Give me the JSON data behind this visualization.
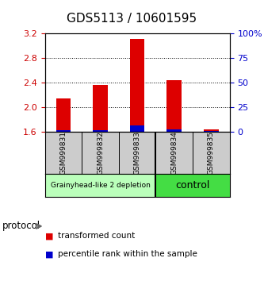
{
  "title": "GDS5113 / 10601595",
  "samples": [
    "GSM999831",
    "GSM999832",
    "GSM999833",
    "GSM999834",
    "GSM999835"
  ],
  "transformed_counts": [
    2.15,
    2.37,
    3.12,
    2.45,
    1.65
  ],
  "percentile_ranks_pct": [
    2.0,
    2.0,
    7.0,
    3.0,
    1.0
  ],
  "ymin": 1.6,
  "ymax": 3.2,
  "yticks_left": [
    1.6,
    2.0,
    2.4,
    2.8,
    3.2
  ],
  "yticks_right": [
    0,
    25,
    50,
    75,
    100
  ],
  "yticks_right_labels": [
    "0",
    "25",
    "50",
    "75",
    "100%"
  ],
  "bar_color_red": "#dd0000",
  "bar_color_blue": "#0000cc",
  "title_fontsize": 11,
  "groups": [
    {
      "label": "Grainyhead-like 2 depletion",
      "n": 3,
      "color": "#bbffbb",
      "fontsize": 6.5
    },
    {
      "label": "control",
      "n": 2,
      "color": "#44dd44",
      "fontsize": 9
    }
  ],
  "protocol_label": "protocol",
  "legend_items": [
    {
      "color": "#dd0000",
      "label": "transformed count"
    },
    {
      "color": "#0000cc",
      "label": "percentile rank within the sample"
    }
  ],
  "tick_label_color_left": "#cc0000",
  "tick_label_color_right": "#0000cc",
  "bar_width": 0.4,
  "baseline": 1.6,
  "sample_label_bg": "#cccccc",
  "arrow_color": "#666666"
}
